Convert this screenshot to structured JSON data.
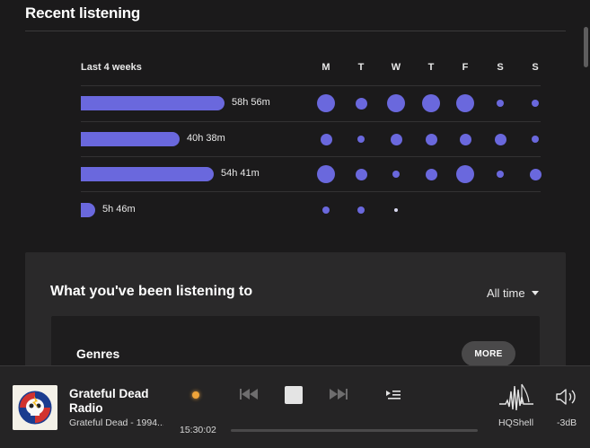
{
  "section": {
    "title": "Recent listening"
  },
  "stats": {
    "period_label": "Last 4 weeks",
    "days": [
      "M",
      "T",
      "W",
      "T",
      "F",
      "S",
      "S"
    ],
    "weeks": [
      {
        "duration": "58h 56m",
        "hours": 58.93,
        "dots": [
          3,
          2,
          3,
          3,
          3,
          1,
          1
        ]
      },
      {
        "duration": "40h 38m",
        "hours": 40.63,
        "dots": [
          2,
          1,
          2,
          2,
          2,
          2,
          1
        ]
      },
      {
        "duration": "54h 41m",
        "hours": 54.68,
        "dots": [
          3,
          2,
          1,
          2,
          3,
          1,
          2
        ]
      },
      {
        "duration": "5h 46m",
        "hours": 5.77,
        "dots": [
          1,
          1,
          0,
          null,
          null,
          null,
          null
        ]
      }
    ]
  },
  "panel": {
    "title": "What you've been listening to",
    "filter_value": "All time",
    "genres": {
      "title": "Genres",
      "more_label": "MORE"
    }
  },
  "player": {
    "track_title": "Grateful Dead Radio",
    "track_subtitle": "Grateful Dead - 1994...",
    "elapsed": "15:30:02",
    "output_label": "HQShell",
    "volume_label": "-3dB"
  },
  "colors": {
    "accent": "#6a68dd",
    "live": "#f0a43a",
    "background": "#1b1a1b"
  }
}
